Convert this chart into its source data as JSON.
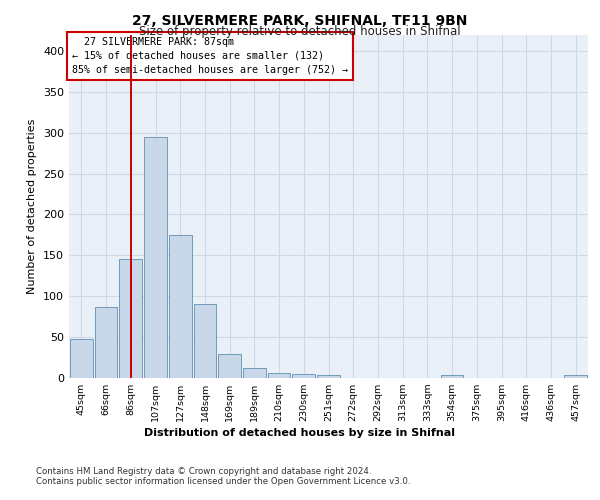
{
  "title1": "27, SILVERMERE PARK, SHIFNAL, TF11 9BN",
  "title2": "Size of property relative to detached houses in Shifnal",
  "xlabel": "Distribution of detached houses by size in Shifnal",
  "ylabel": "Number of detached properties",
  "footer1": "Contains HM Land Registry data © Crown copyright and database right 2024.",
  "footer2": "Contains public sector information licensed under the Open Government Licence v3.0.",
  "bin_labels": [
    "45sqm",
    "66sqm",
    "86sqm",
    "107sqm",
    "127sqm",
    "148sqm",
    "169sqm",
    "189sqm",
    "210sqm",
    "230sqm",
    "251sqm",
    "272sqm",
    "292sqm",
    "313sqm",
    "333sqm",
    "354sqm",
    "375sqm",
    "395sqm",
    "416sqm",
    "436sqm",
    "457sqm"
  ],
  "bar_values": [
    47,
    87,
    145,
    295,
    175,
    90,
    29,
    12,
    6,
    4,
    3,
    0,
    0,
    0,
    0,
    3,
    0,
    0,
    0,
    0,
    3
  ],
  "bar_color": "#c8d8e8",
  "bar_edge_color": "#6090b0",
  "property_label": "27 SILVERMERE PARK: 87sqm",
  "pct_smaller_detached": 15,
  "n_smaller_detached": 132,
  "pct_larger_semidetached": 85,
  "n_larger_semidetached": 752,
  "marker_bin_index": 2,
  "marker_color": "#cc0000",
  "annotation_box_color": "#cc0000",
  "grid_color": "#d0d8e8",
  "background_color": "#eaf0f8",
  "ylim": [
    0,
    420
  ],
  "yticks": [
    0,
    50,
    100,
    150,
    200,
    250,
    300,
    350,
    400
  ]
}
